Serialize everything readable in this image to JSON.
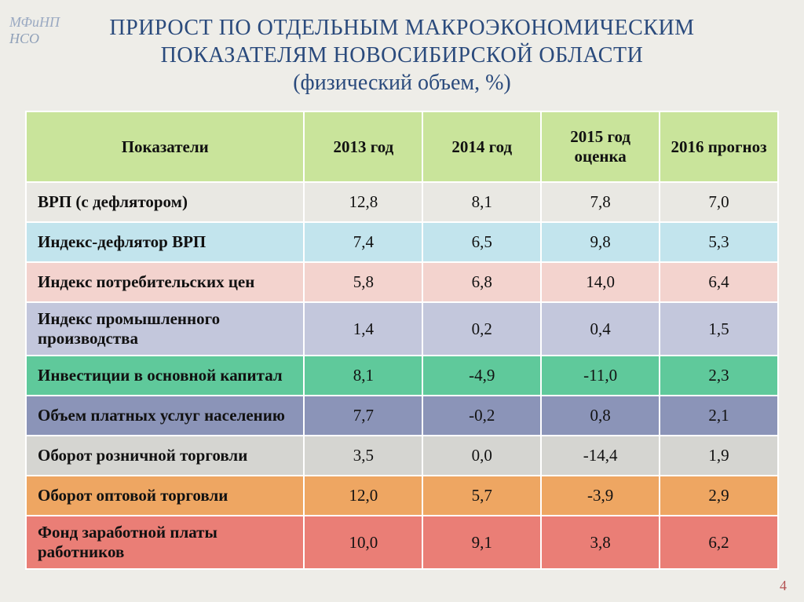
{
  "watermark": {
    "line1": "МФиНП",
    "line2": "НСО"
  },
  "title": {
    "line1": "ПРИРОСТ ПО ОТДЕЛЬНЫМ МАКРОЭКОНОМИЧЕСКИМ",
    "line2": "ПОКАЗАТЕЛЯМ НОВОСИБИРСКОЙ ОБЛАСТИ",
    "line3": "(физический объем, %)"
  },
  "table": {
    "header_bg": "#c9e49b",
    "columns": [
      "Показатели",
      "2013 год",
      "2014 год",
      "2015 год оценка",
      "2016 прогноз"
    ],
    "rows": [
      {
        "label": "ВРП (с дефлятором)",
        "values": [
          "12,8",
          "8,1",
          "7,8",
          "7,0"
        ],
        "bg": "#e9e8e3",
        "tall": false
      },
      {
        "label": "Индекс-дефлятор ВРП",
        "values": [
          "7,4",
          "6,5",
          "9,8",
          "5,3"
        ],
        "bg": "#c2e4ed",
        "tall": false
      },
      {
        "label": "Индекс потребительских цен",
        "values": [
          "5,8",
          "6,8",
          "14,0",
          "6,4"
        ],
        "bg": "#f3d3ce",
        "tall": false
      },
      {
        "label": "Индекс промышленного производства",
        "values": [
          "1,4",
          "0,2",
          "0,4",
          "1,5"
        ],
        "bg": "#c3c7dc",
        "tall": true
      },
      {
        "label": "Инвестиции в основной капитал",
        "values": [
          "8,1",
          "-4,9",
          "-11,0",
          "2,3"
        ],
        "bg": "#5fc99b",
        "tall": false
      },
      {
        "label": "Объем платных услуг населению",
        "values": [
          "7,7",
          "-0,2",
          "0,8",
          "2,1"
        ],
        "bg": "#8b94b8",
        "tall": false
      },
      {
        "label": "Оборот розничной торговли",
        "values": [
          "3,5",
          "0,0",
          "-14,4",
          "1,9"
        ],
        "bg": "#d5d5d1",
        "tall": false
      },
      {
        "label": "Оборот оптовой торговли",
        "values": [
          "12,0",
          "5,7",
          "-3,9",
          "2,9"
        ],
        "bg": "#eea662",
        "tall": false
      },
      {
        "label": "Фонд заработной платы работников",
        "values": [
          "10,0",
          "9,1",
          "3,8",
          "6,2"
        ],
        "bg": "#ea7e76",
        "tall": true
      }
    ]
  },
  "page_number": "4",
  "fonts": {
    "title_size_pt": 21,
    "cell_size_pt": 16
  },
  "colors": {
    "page_bg": "#eeede8",
    "title_color": "#2a4a7c",
    "border": "#ffffff"
  }
}
